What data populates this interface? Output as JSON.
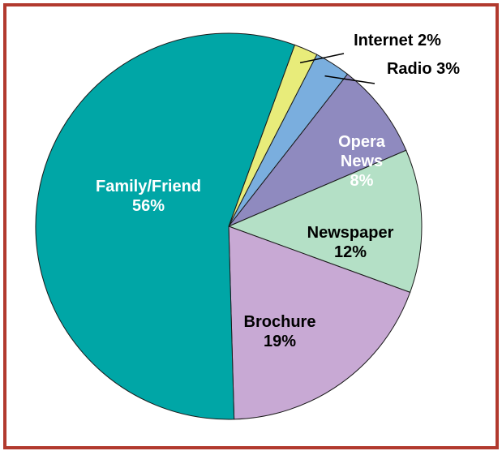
{
  "chart_data": {
    "type": "pie",
    "title": "",
    "slices": [
      {
        "label": "Internet",
        "value": 2,
        "value_label": "2%",
        "color": "#e8ec7a"
      },
      {
        "label": "Radio",
        "value": 3,
        "value_label": "3%",
        "color": "#7aaede"
      },
      {
        "label": "Opera News",
        "value": 8,
        "value_label": "8%",
        "color": "#8f8abf"
      },
      {
        "label": "Newspaper",
        "value": 12,
        "value_label": "12%",
        "color": "#b4e0c6"
      },
      {
        "label": "Brochure",
        "value": 19,
        "value_label": "19%",
        "color": "#c8a9d4"
      },
      {
        "label": "Family/Friend",
        "value": 56,
        "value_label": "56%",
        "color": "#00a6a6"
      }
    ]
  },
  "frame_color": "#b23a2e"
}
